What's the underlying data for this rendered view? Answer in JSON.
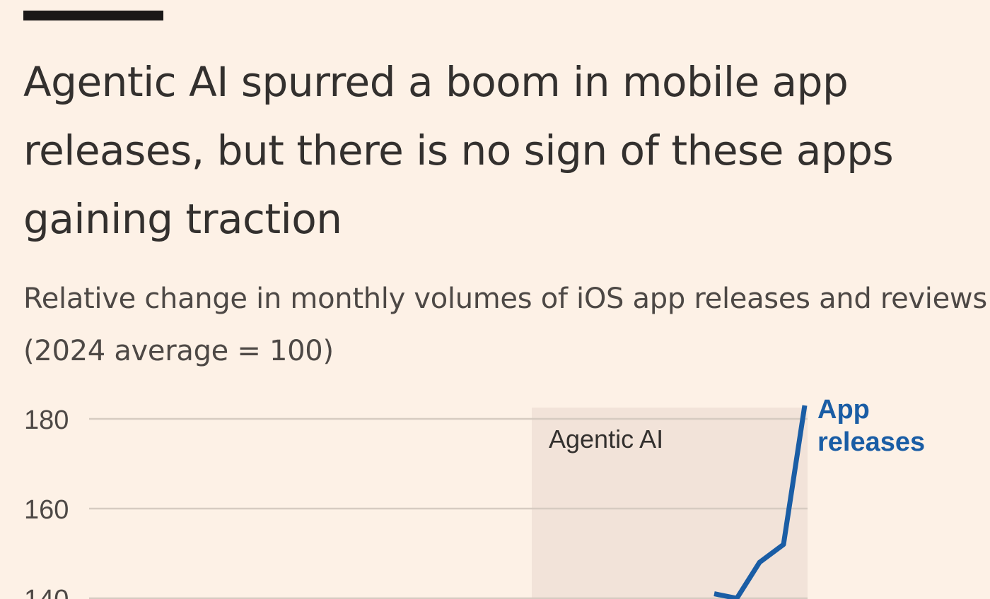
{
  "title": "Agentic AI spurred a boom in mobile app releases, but there is no sign of these apps gaining traction",
  "subtitle": "Relative change in monthly volumes of iOS app releases and reviews (2024 average = 100)",
  "chart_data": {
    "type": "line",
    "ylim": [
      100,
      185
    ],
    "y_ticks": [
      {
        "value": 180,
        "label": "180"
      },
      {
        "value": 160,
        "label": "160"
      },
      {
        "value": 140,
        "label": "140"
      }
    ],
    "grid": true,
    "annotation": {
      "label": "Agentic AI"
    },
    "series": [
      {
        "name": "App releases",
        "label_lines": [
          "App",
          "releases"
        ],
        "color": "#1a5da5",
        "values": [
          141,
          140,
          148,
          152,
          183
        ]
      }
    ]
  },
  "colors": {
    "background": "#fdf1e6",
    "gridline": "#d6cbc1",
    "shade": "#f2e3d9",
    "axis_text": "#4d4845",
    "series_blue": "#1a5da5"
  }
}
